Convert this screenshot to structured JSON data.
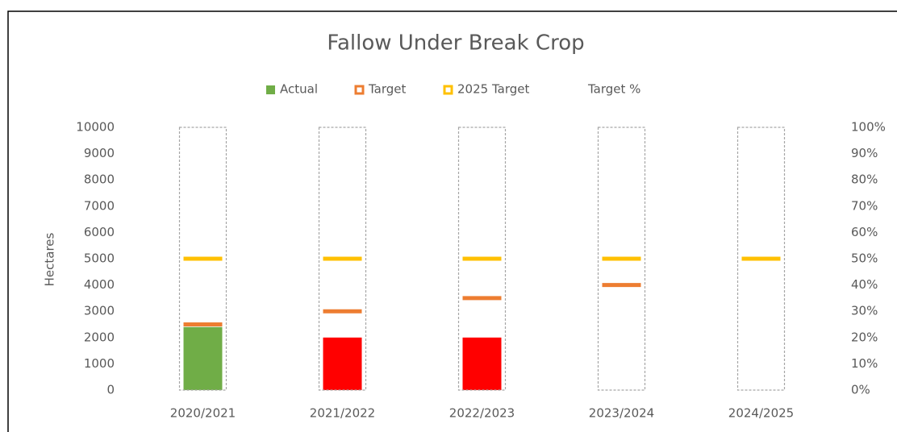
{
  "chart_data": {
    "type": "bar",
    "title": "Fallow Under Break Crop",
    "ylabel": "Hectares",
    "categories": [
      "2020/2021",
      "2021/2022",
      "2022/2023",
      "2023/2024",
      "2024/2025"
    ],
    "series": [
      {
        "name": "Actual",
        "color": "#70ad47",
        "colors": [
          "#70ad47",
          "#ff0000",
          "#ff0000",
          null,
          null
        ],
        "values": [
          2400,
          2000,
          2000,
          null,
          null
        ]
      },
      {
        "name": "Target",
        "color": "#ed7d31",
        "values": [
          2500,
          3000,
          3500,
          4000,
          null
        ]
      },
      {
        "name": "2025 Target",
        "color": "#ffc000",
        "values": [
          5000,
          5000,
          5000,
          5000,
          5000
        ]
      },
      {
        "name": "Target %",
        "color": "#a6a6a6",
        "axis": "y2",
        "values": [
          100,
          100,
          100,
          100,
          100
        ]
      }
    ],
    "ylim": [
      0,
      10000
    ],
    "yticks": [
      0,
      1000,
      2000,
      3000,
      4000,
      5000,
      6000,
      7000,
      8000,
      9000,
      10000
    ],
    "y2lim": [
      0,
      100
    ],
    "y2ticks": [
      {
        "value": 0,
        "label": "0%"
      },
      {
        "value": 10,
        "label": "10%"
      },
      {
        "value": 20,
        "label": "20%"
      },
      {
        "value": 30,
        "label": "30%"
      },
      {
        "value": 40,
        "label": "40%"
      },
      {
        "value": 50,
        "label": "50%"
      },
      {
        "value": 60,
        "label": "60%"
      },
      {
        "value": 70,
        "label": "70%"
      },
      {
        "value": 80,
        "label": "80%"
      },
      {
        "value": 90,
        "label": "90%"
      },
      {
        "value": 100,
        "label": "100%"
      }
    ],
    "legend": "top"
  }
}
